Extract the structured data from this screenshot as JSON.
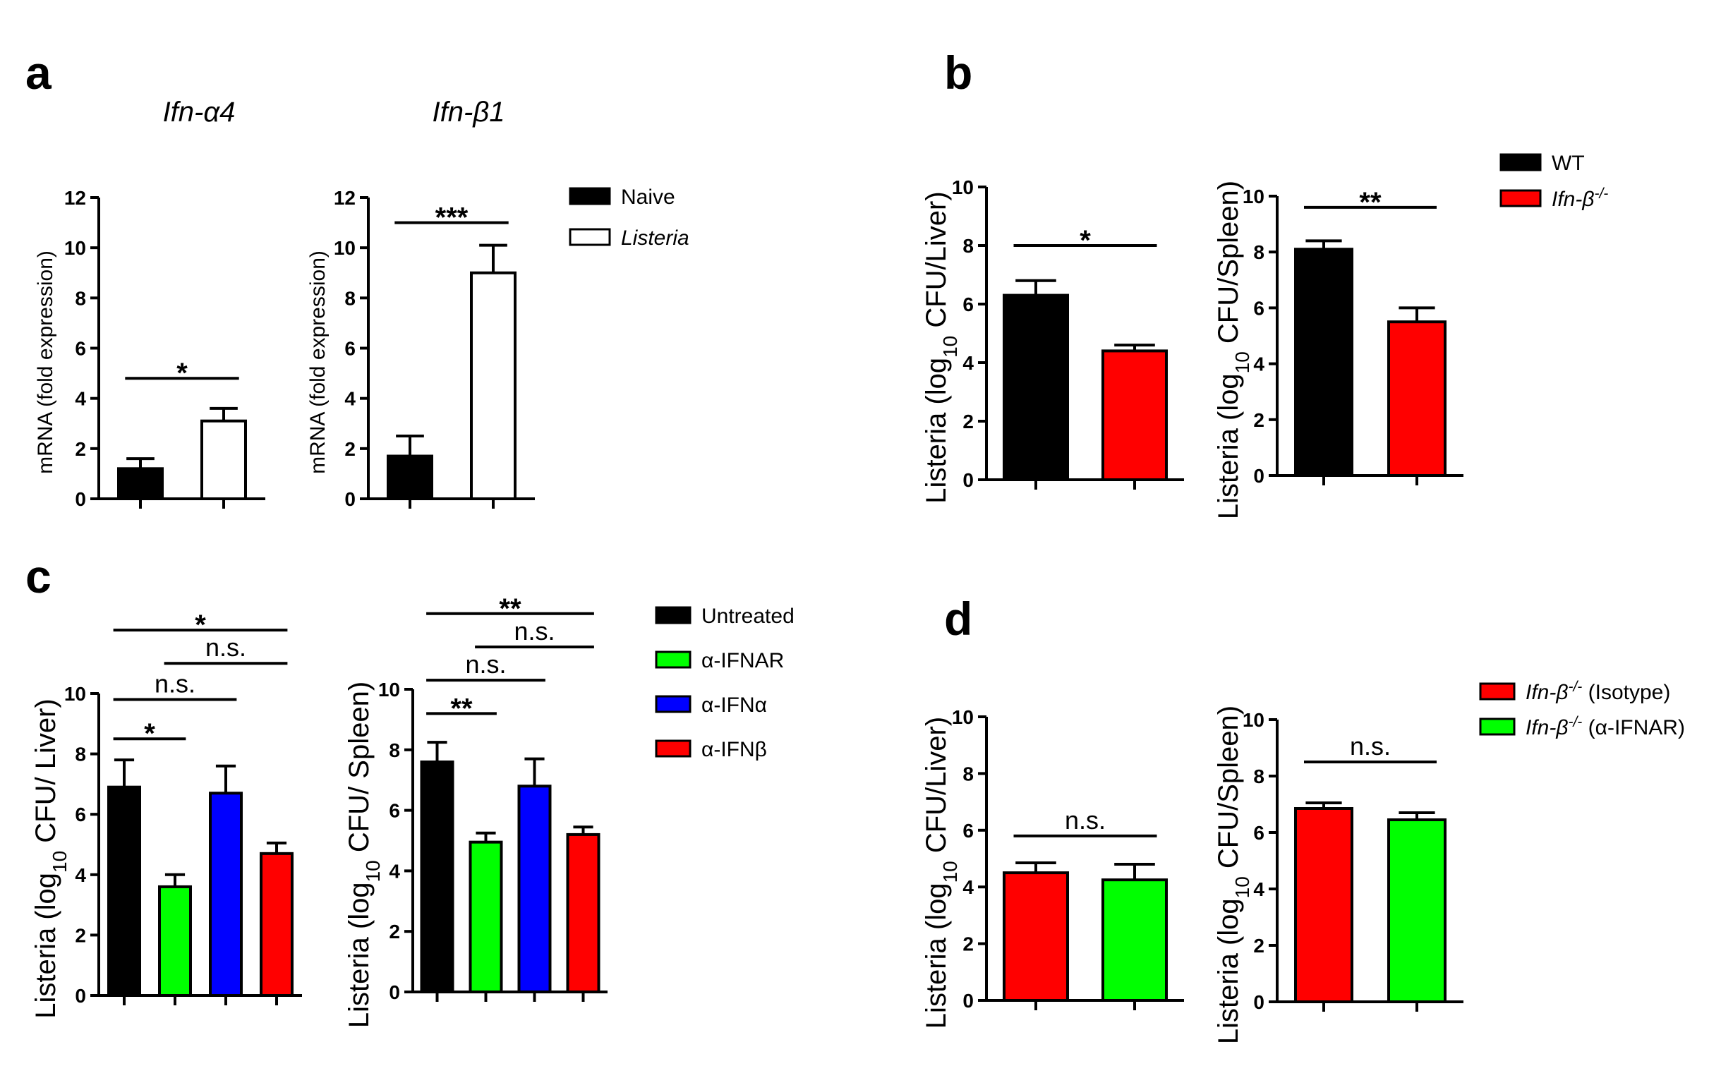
{
  "panels": [
    {
      "id": "a",
      "label": "a"
    },
    {
      "id": "b",
      "label": "b"
    },
    {
      "id": "c",
      "label": "c"
    },
    {
      "id": "d",
      "label": "d"
    }
  ],
  "legends": {
    "a": [
      {
        "label": "Naive",
        "color": "#000000",
        "fill": "solid"
      },
      {
        "label": "Listeria",
        "color": "#ffffff",
        "fill": "open",
        "italic": true
      }
    ],
    "b": [
      {
        "label": "WT",
        "color": "#000000"
      },
      {
        "label": "Ifn-β",
        "sup": "-/-",
        "color": "#ff0000",
        "italic": true
      }
    ],
    "c": [
      {
        "label": "Untreated",
        "color": "#000000"
      },
      {
        "label": "α-IFNAR",
        "color": "#00ff00"
      },
      {
        "label": "α-IFNα",
        "color": "#0000ff"
      },
      {
        "label": "α-IFNβ",
        "color": "#ff0000"
      }
    ],
    "d": [
      {
        "label": "Ifn-β",
        "sup": "-/-",
        "suffix": " (Isotype)",
        "color": "#ff0000"
      },
      {
        "label": "Ifn-β",
        "sup": "-/-",
        "suffix": " (α-IFNAR)",
        "color": "#00ff00"
      }
    ]
  },
  "chart_data": [
    {
      "panel": "a",
      "type": "bar",
      "title": "Ifn-α4",
      "ylabel": "mRNA (fold expression)",
      "ylim": [
        0,
        12
      ],
      "yticks": [
        0,
        2,
        4,
        6,
        8,
        10,
        12
      ],
      "categories": [
        "Naive",
        "Listeria"
      ],
      "values": [
        1.2,
        3.1
      ],
      "errors": [
        0.4,
        0.5
      ],
      "colors": [
        "#000000",
        "#ffffff"
      ],
      "significance": [
        {
          "from": 0,
          "to": 1,
          "label": "*",
          "y": 4.8
        }
      ]
    },
    {
      "panel": "a",
      "type": "bar",
      "title": "Ifn-β1",
      "ylabel": "mRNA (fold expression)",
      "ylim": [
        0,
        12
      ],
      "yticks": [
        0,
        2,
        4,
        6,
        8,
        10,
        12
      ],
      "categories": [
        "Naive",
        "Listeria"
      ],
      "values": [
        1.7,
        9.0
      ],
      "errors": [
        0.8,
        1.1
      ],
      "colors": [
        "#000000",
        "#ffffff"
      ],
      "significance": [
        {
          "from": 0,
          "to": 1,
          "label": "***",
          "y": 11.0
        }
      ]
    },
    {
      "panel": "b",
      "type": "bar",
      "ylabel": "Listeria (log10 CFU/Liver)",
      "ylim": [
        0,
        10
      ],
      "yticks": [
        0,
        2,
        4,
        6,
        8,
        10
      ],
      "categories": [
        "WT",
        "Ifn-β-/-"
      ],
      "values": [
        6.3,
        4.4
      ],
      "errors": [
        0.5,
        0.2
      ],
      "colors": [
        "#000000",
        "#ff0000"
      ],
      "significance": [
        {
          "from": 0,
          "to": 1,
          "label": "*",
          "y": 8.0
        }
      ]
    },
    {
      "panel": "b",
      "type": "bar",
      "ylabel": "Listeria (log10 CFU/Spleen)",
      "ylim": [
        0,
        10
      ],
      "yticks": [
        0,
        2,
        4,
        6,
        8,
        10
      ],
      "categories": [
        "WT",
        "Ifn-β-/-"
      ],
      "values": [
        8.1,
        5.5
      ],
      "errors": [
        0.3,
        0.5
      ],
      "colors": [
        "#000000",
        "#ff0000"
      ],
      "significance": [
        {
          "from": 0,
          "to": 1,
          "label": "**",
          "y": 9.6
        }
      ]
    },
    {
      "panel": "c",
      "type": "bar",
      "ylabel": "Listeria (log10 CFU/ Liver)",
      "ylim": [
        0,
        10
      ],
      "yticks": [
        0,
        2,
        4,
        6,
        8,
        10
      ],
      "categories": [
        "Untreated",
        "α-IFNAR",
        "α-IFNα",
        "α-IFNβ"
      ],
      "values": [
        6.9,
        3.6,
        6.7,
        4.7
      ],
      "errors": [
        0.9,
        0.4,
        0.9,
        0.35
      ],
      "colors": [
        "#000000",
        "#00ff00",
        "#0000ff",
        "#ff0000"
      ],
      "significance": [
        {
          "from": 0,
          "to": 1,
          "label": "*",
          "y": 8.5
        },
        {
          "from": 0,
          "to": 2,
          "label": "n.s.",
          "y": 9.8
        },
        {
          "from": 1,
          "to": 3,
          "label": "n.s.",
          "y": 11.0
        },
        {
          "from": 0,
          "to": 3,
          "label": "*",
          "y": 12.1
        }
      ]
    },
    {
      "panel": "c",
      "type": "bar",
      "ylabel": "Listeria (log10 CFU/ Spleen)",
      "ylim": [
        0,
        10
      ],
      "yticks": [
        0,
        2,
        4,
        6,
        8,
        10
      ],
      "categories": [
        "Untreated",
        "α-IFNAR",
        "α-IFNα",
        "α-IFNβ"
      ],
      "values": [
        7.6,
        4.95,
        6.8,
        5.2
      ],
      "errors": [
        0.65,
        0.3,
        0.9,
        0.25
      ],
      "colors": [
        "#000000",
        "#00ff00",
        "#0000ff",
        "#ff0000"
      ],
      "significance": [
        {
          "from": 0,
          "to": 1,
          "label": "**",
          "y": 9.2
        },
        {
          "from": 0,
          "to": 2,
          "label": "n.s.",
          "y": 10.3
        },
        {
          "from": 1,
          "to": 3,
          "label": "n.s.",
          "y": 11.4
        },
        {
          "from": 0,
          "to": 3,
          "label": "**",
          "y": 12.5
        }
      ]
    },
    {
      "panel": "d",
      "type": "bar",
      "ylabel": "Listeria (log10 CFU/Liver)",
      "ylim": [
        0,
        10
      ],
      "yticks": [
        0,
        2,
        4,
        6,
        8,
        10
      ],
      "categories": [
        "Ifn-β-/- (Isotype)",
        "Ifn-β-/- (α-IFNAR)"
      ],
      "values": [
        4.5,
        4.25
      ],
      "errors": [
        0.35,
        0.55
      ],
      "colors": [
        "#ff0000",
        "#00ff00"
      ],
      "significance": [
        {
          "from": 0,
          "to": 1,
          "label": "n.s.",
          "y": 5.8
        }
      ]
    },
    {
      "panel": "d",
      "type": "bar",
      "ylabel": "Listeria (log10 CFU/Spleen)",
      "ylim": [
        0,
        10
      ],
      "yticks": [
        0,
        2,
        4,
        6,
        8,
        10
      ],
      "categories": [
        "Ifn-β-/- (Isotype)",
        "Ifn-β-/- (α-IFNAR)"
      ],
      "values": [
        6.85,
        6.45
      ],
      "errors": [
        0.2,
        0.25
      ],
      "colors": [
        "#ff0000",
        "#00ff00"
      ],
      "significance": [
        {
          "from": 0,
          "to": 1,
          "label": "n.s.",
          "y": 8.5
        }
      ]
    }
  ]
}
